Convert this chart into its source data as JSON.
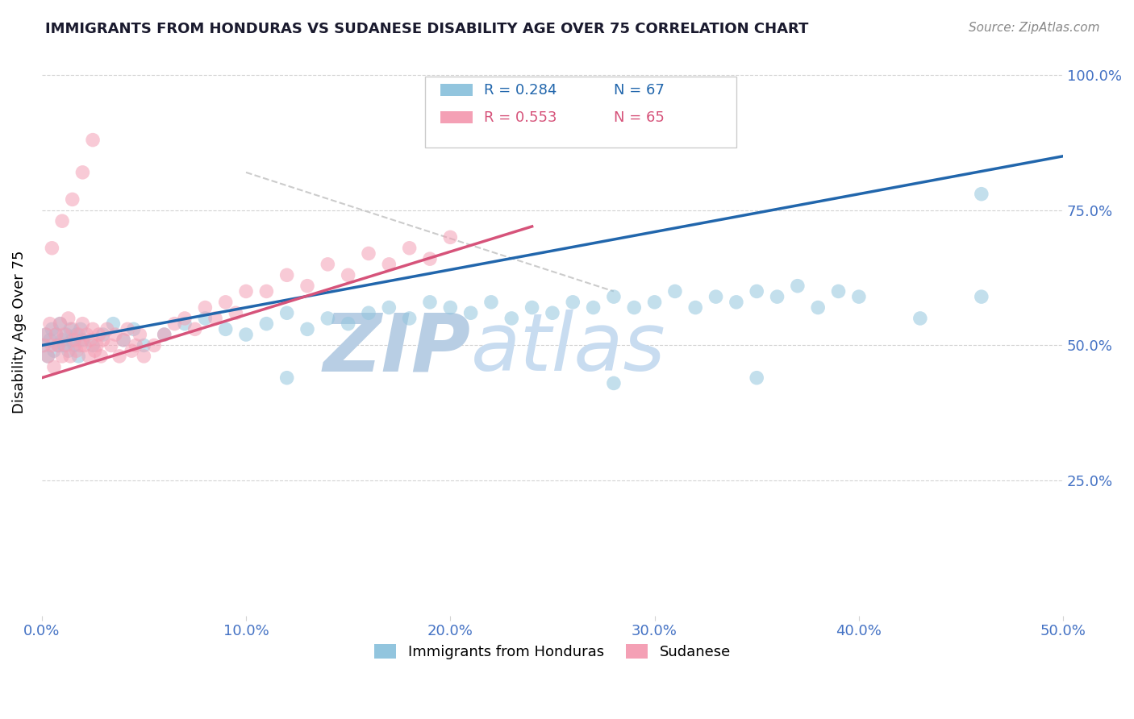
{
  "title": "IMMIGRANTS FROM HONDURAS VS SUDANESE DISABILITY AGE OVER 75 CORRELATION CHART",
  "source": "Source: ZipAtlas.com",
  "ylabel": "Disability Age Over 75",
  "x_label_bottom": "Immigrants from Honduras",
  "xlim": [
    0.0,
    0.5
  ],
  "ylim": [
    0.0,
    1.05
  ],
  "xticks": [
    0.0,
    0.1,
    0.2,
    0.3,
    0.4,
    0.5
  ],
  "xticklabels": [
    "0.0%",
    "10.0%",
    "20.0%",
    "30.0%",
    "40.0%",
    "50.0%"
  ],
  "yticks": [
    0.0,
    0.25,
    0.5,
    0.75,
    1.0
  ],
  "yticklabels": [
    "",
    "25.0%",
    "50.0%",
    "75.0%",
    "100.0%"
  ],
  "legend_blue_label": "Immigrants from Honduras",
  "legend_pink_label": "Sudanese",
  "R_blue": "0.284",
  "N_blue": "67",
  "R_pink": "0.553",
  "N_pink": "65",
  "blue_color": "#92C5DE",
  "pink_color": "#F4A0B5",
  "blue_line_color": "#2166AC",
  "pink_line_color": "#D6537A",
  "dash_line_color": "#CCCCCC",
  "tick_color": "#4472C4",
  "blue_scatter_x": [
    0.001,
    0.002,
    0.003,
    0.004,
    0.005,
    0.006,
    0.007,
    0.008,
    0.009,
    0.01,
    0.011,
    0.012,
    0.013,
    0.014,
    0.015,
    0.016,
    0.017,
    0.018,
    0.019,
    0.02,
    0.025,
    0.03,
    0.035,
    0.04,
    0.045,
    0.05,
    0.06,
    0.07,
    0.08,
    0.09,
    0.1,
    0.11,
    0.12,
    0.13,
    0.14,
    0.15,
    0.16,
    0.17,
    0.18,
    0.19,
    0.2,
    0.21,
    0.22,
    0.23,
    0.24,
    0.25,
    0.26,
    0.27,
    0.28,
    0.29,
    0.3,
    0.31,
    0.32,
    0.33,
    0.34,
    0.35,
    0.36,
    0.37,
    0.38,
    0.39,
    0.4,
    0.43,
    0.46,
    0.12,
    0.28,
    0.35,
    0.46
  ],
  "blue_scatter_y": [
    0.5,
    0.52,
    0.48,
    0.51,
    0.53,
    0.49,
    0.52,
    0.5,
    0.54,
    0.51,
    0.5,
    0.52,
    0.49,
    0.53,
    0.51,
    0.5,
    0.52,
    0.48,
    0.53,
    0.51,
    0.5,
    0.52,
    0.54,
    0.51,
    0.53,
    0.5,
    0.52,
    0.54,
    0.55,
    0.53,
    0.52,
    0.54,
    0.56,
    0.53,
    0.55,
    0.54,
    0.56,
    0.57,
    0.55,
    0.58,
    0.57,
    0.56,
    0.58,
    0.55,
    0.57,
    0.56,
    0.58,
    0.57,
    0.59,
    0.57,
    0.58,
    0.6,
    0.57,
    0.59,
    0.58,
    0.6,
    0.59,
    0.61,
    0.57,
    0.6,
    0.59,
    0.55,
    0.59,
    0.44,
    0.43,
    0.44,
    0.78
  ],
  "pink_scatter_x": [
    0.001,
    0.002,
    0.003,
    0.004,
    0.005,
    0.006,
    0.007,
    0.008,
    0.009,
    0.01,
    0.011,
    0.012,
    0.013,
    0.014,
    0.015,
    0.016,
    0.017,
    0.018,
    0.019,
    0.02,
    0.021,
    0.022,
    0.023,
    0.024,
    0.025,
    0.026,
    0.027,
    0.028,
    0.029,
    0.03,
    0.032,
    0.034,
    0.036,
    0.038,
    0.04,
    0.042,
    0.044,
    0.046,
    0.048,
    0.05,
    0.055,
    0.06,
    0.065,
    0.07,
    0.075,
    0.08,
    0.085,
    0.09,
    0.095,
    0.1,
    0.11,
    0.12,
    0.13,
    0.14,
    0.15,
    0.16,
    0.17,
    0.18,
    0.19,
    0.2,
    0.005,
    0.01,
    0.015,
    0.02,
    0.025
  ],
  "pink_scatter_y": [
    0.5,
    0.52,
    0.48,
    0.54,
    0.5,
    0.46,
    0.52,
    0.5,
    0.54,
    0.48,
    0.52,
    0.5,
    0.55,
    0.48,
    0.53,
    0.51,
    0.49,
    0.52,
    0.5,
    0.54,
    0.5,
    0.52,
    0.48,
    0.51,
    0.53,
    0.49,
    0.5,
    0.52,
    0.48,
    0.51,
    0.53,
    0.5,
    0.52,
    0.48,
    0.51,
    0.53,
    0.49,
    0.5,
    0.52,
    0.48,
    0.5,
    0.52,
    0.54,
    0.55,
    0.53,
    0.57,
    0.55,
    0.58,
    0.56,
    0.6,
    0.6,
    0.63,
    0.61,
    0.65,
    0.63,
    0.67,
    0.65,
    0.68,
    0.66,
    0.7,
    0.68,
    0.73,
    0.77,
    0.82,
    0.88
  ]
}
